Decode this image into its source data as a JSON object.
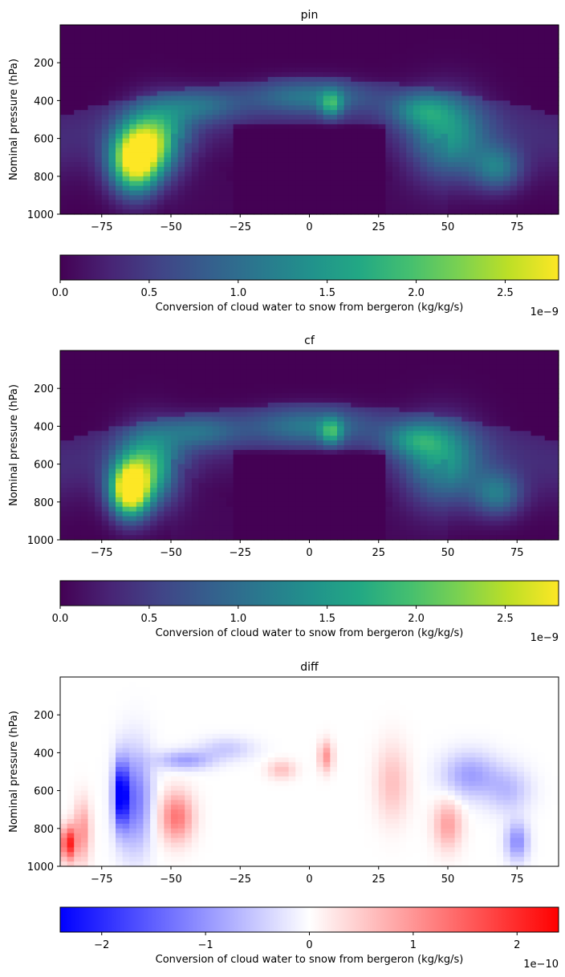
{
  "chart_data": [
    {
      "type": "heatmap",
      "title": "pin",
      "ylabel": "Nominal pressure (hPa)",
      "xlim": [
        -90,
        90
      ],
      "ylim": [
        1000,
        0
      ],
      "xticks": [
        -75,
        -50,
        -25,
        0,
        25,
        50,
        75
      ],
      "xtick_labels": [
        "−75",
        "−50",
        "−25",
        "0",
        "25",
        "50",
        "75"
      ],
      "yticks": [
        200,
        400,
        600,
        800,
        1000
      ],
      "ytick_labels": [
        "200",
        "400",
        "600",
        "800",
        "1000"
      ],
      "colormap": "viridis",
      "colorbar": {
        "label": "Conversion of cloud water to snow from bergeron (kg/kg/s)",
        "range": [
          0,
          2.8
        ],
        "ticks": [
          0,
          0.5,
          1.0,
          1.5,
          2.0,
          2.5
        ],
        "tick_labels": [
          "0.0",
          "0.5",
          "1.0",
          "1.5",
          "2.0",
          "2.5"
        ],
        "offset_text": "1e−9"
      },
      "features": [
        {
          "lat": -63,
          "p": 720,
          "value": 2.75,
          "width_deg": 9,
          "height_hpa": 170
        },
        {
          "lat": -55,
          "p": 600,
          "value": 1.6,
          "width_deg": 11,
          "height_hpa": 180
        },
        {
          "lat": -40,
          "p": 430,
          "value": 0.7,
          "width_deg": 14,
          "height_hpa": 90
        },
        {
          "lat": 0,
          "p": 380,
          "value": 0.8,
          "width_deg": 22,
          "height_hpa": 90
        },
        {
          "lat": 8,
          "p": 420,
          "value": 1.05,
          "width_deg": 4,
          "height_hpa": 70
        },
        {
          "lat": 50,
          "p": 600,
          "value": 1.25,
          "width_deg": 14,
          "height_hpa": 220
        },
        {
          "lat": 40,
          "p": 450,
          "value": 0.8,
          "width_deg": 11,
          "height_hpa": 90
        },
        {
          "lat": 68,
          "p": 760,
          "value": 1.0,
          "width_deg": 9,
          "height_hpa": 120
        }
      ]
    },
    {
      "type": "heatmap",
      "title": "cf",
      "ylabel": "Nominal pressure (hPa)",
      "xlim": [
        -90,
        90
      ],
      "ylim": [
        1000,
        0
      ],
      "xticks": [
        -75,
        -50,
        -25,
        0,
        25,
        50,
        75
      ],
      "xtick_labels": [
        "−75",
        "−50",
        "−25",
        "0",
        "25",
        "50",
        "75"
      ],
      "yticks": [
        200,
        400,
        600,
        800,
        1000
      ],
      "ytick_labels": [
        "200",
        "400",
        "600",
        "800",
        "1000"
      ],
      "colormap": "viridis",
      "colorbar": {
        "label": "Conversion of cloud water to snow from bergeron (kg/kg/s)",
        "range": [
          0,
          2.8
        ],
        "ticks": [
          0,
          0.5,
          1.0,
          1.5,
          2.0,
          2.5
        ],
        "tick_labels": [
          "0.0",
          "0.5",
          "1.0",
          "1.5",
          "2.0",
          "2.5"
        ],
        "offset_text": "1e−9"
      },
      "features": [
        {
          "lat": -65,
          "p": 740,
          "value": 2.8,
          "width_deg": 7,
          "height_hpa": 140
        },
        {
          "lat": -58,
          "p": 620,
          "value": 1.6,
          "width_deg": 11,
          "height_hpa": 200
        },
        {
          "lat": -40,
          "p": 430,
          "value": 0.7,
          "width_deg": 14,
          "height_hpa": 90
        },
        {
          "lat": 0,
          "p": 400,
          "value": 0.8,
          "width_deg": 22,
          "height_hpa": 100
        },
        {
          "lat": 8,
          "p": 430,
          "value": 1.05,
          "width_deg": 4,
          "height_hpa": 70
        },
        {
          "lat": 48,
          "p": 600,
          "value": 1.25,
          "width_deg": 14,
          "height_hpa": 220
        },
        {
          "lat": 38,
          "p": 470,
          "value": 0.85,
          "width_deg": 11,
          "height_hpa": 90
        },
        {
          "lat": 68,
          "p": 760,
          "value": 1.0,
          "width_deg": 9,
          "height_hpa": 120
        }
      ]
    },
    {
      "type": "heatmap",
      "title": "diff",
      "ylabel": "Nominal pressure (hPa)",
      "xlim": [
        -90,
        90
      ],
      "ylim": [
        1000,
        0
      ],
      "xticks": [
        -75,
        -50,
        -25,
        0,
        25,
        50,
        75
      ],
      "xtick_labels": [
        "−75",
        "−50",
        "−25",
        "0",
        "25",
        "50",
        "75"
      ],
      "yticks": [
        200,
        400,
        600,
        800,
        1000
      ],
      "ytick_labels": [
        "200",
        "400",
        "600",
        "800",
        "1000"
      ],
      "colormap": "bwr",
      "colorbar": {
        "label": "Conversion of cloud water to snow from bergeron (kg/kg/s)",
        "range": [
          -2.4,
          2.4
        ],
        "ticks": [
          -2,
          -1,
          0,
          1,
          2
        ],
        "tick_labels": [
          "−2",
          "−1",
          "0",
          "1",
          "2"
        ],
        "offset_text": "1e−10"
      },
      "features": [
        {
          "lat": -87,
          "p": 880,
          "value": 2.2,
          "width_deg": 2.5,
          "height_hpa": 90
        },
        {
          "lat": -82,
          "p": 820,
          "value": 1.0,
          "width_deg": 3,
          "height_hpa": 160
        },
        {
          "lat": -68,
          "p": 620,
          "value": -2.3,
          "width_deg": 2.5,
          "height_hpa": 170
        },
        {
          "lat": -63,
          "p": 650,
          "value": -1.3,
          "width_deg": 6,
          "height_hpa": 260
        },
        {
          "lat": -48,
          "p": 740,
          "value": 1.3,
          "width_deg": 6,
          "height_hpa": 130
        },
        {
          "lat": -45,
          "p": 440,
          "value": -0.9,
          "width_deg": 10,
          "height_hpa": 50
        },
        {
          "lat": -30,
          "p": 380,
          "value": -0.5,
          "width_deg": 10,
          "height_hpa": 60
        },
        {
          "lat": -10,
          "p": 490,
          "value": 0.6,
          "width_deg": 5,
          "height_hpa": 50
        },
        {
          "lat": 6,
          "p": 420,
          "value": 1.0,
          "width_deg": 2.5,
          "height_hpa": 80
        },
        {
          "lat": 30,
          "p": 560,
          "value": 0.6,
          "width_deg": 6,
          "height_hpa": 200
        },
        {
          "lat": 50,
          "p": 780,
          "value": 0.9,
          "width_deg": 5,
          "height_hpa": 130
        },
        {
          "lat": 58,
          "p": 520,
          "value": -0.9,
          "width_deg": 10,
          "height_hpa": 120
        },
        {
          "lat": 75,
          "p": 870,
          "value": -1.1,
          "width_deg": 4,
          "height_hpa": 100
        },
        {
          "lat": 72,
          "p": 600,
          "value": -0.6,
          "width_deg": 8,
          "height_hpa": 120
        }
      ]
    }
  ]
}
